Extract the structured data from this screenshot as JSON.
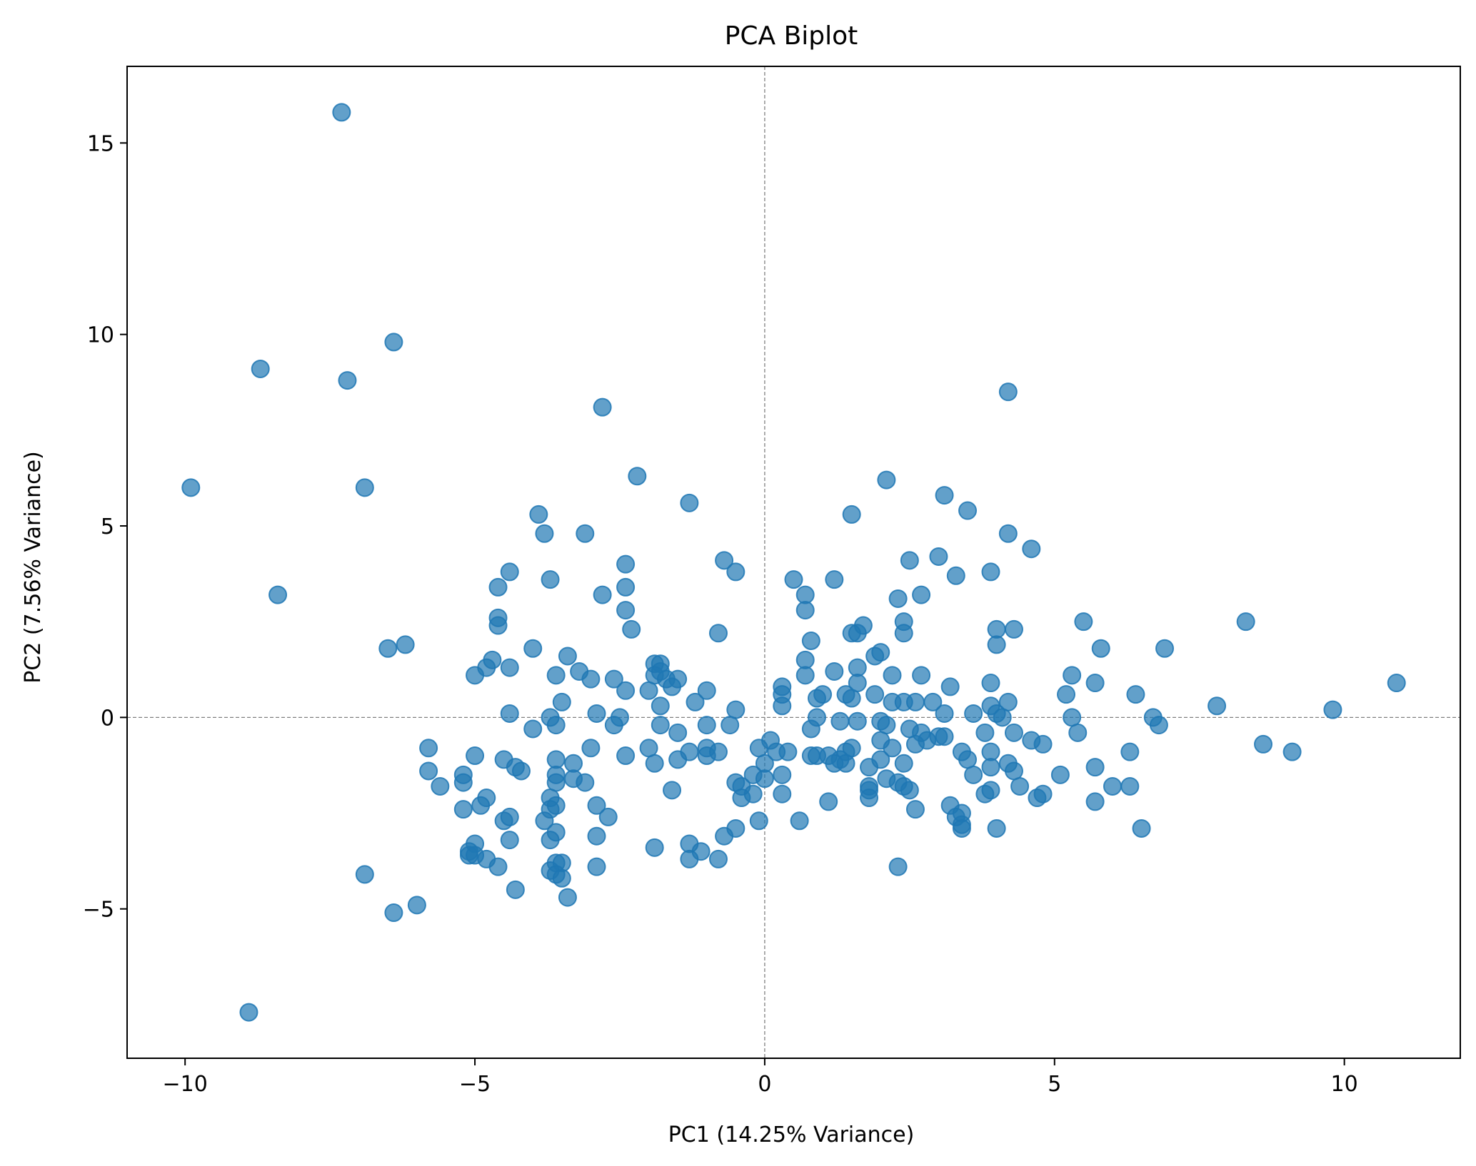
{
  "chart_data": {
    "type": "scatter",
    "title": "PCA Biplot",
    "xlabel": "PC1 (14.25% Variance)",
    "ylabel": "PC2 (7.56% Variance)",
    "xlim": [
      -11,
      12
    ],
    "ylim": [
      -8.9,
      17
    ],
    "xticks": [
      -10,
      -5,
      0,
      5,
      10
    ],
    "yticks": [
      -5,
      0,
      5,
      10,
      15
    ],
    "xtick_labels": [
      "−10",
      "−5",
      "0",
      "5",
      "10"
    ],
    "ytick_labels": [
      "−5",
      "0",
      "5",
      "10",
      "15"
    ],
    "grid": false,
    "reference_lines": [
      "x=0 dashed",
      "y=0 dashed"
    ],
    "marker_color": "#1f77b4",
    "marker_alpha": 0.7,
    "points": [
      [
        -7.3,
        15.8
      ],
      [
        -6.4,
        9.8
      ],
      [
        -8.7,
        9.1
      ],
      [
        -7.2,
        8.8
      ],
      [
        -9.9,
        6.0
      ],
      [
        -6.9,
        6.0
      ],
      [
        -8.4,
        3.2
      ],
      [
        -6.5,
        1.8
      ],
      [
        -6.2,
        1.9
      ],
      [
        -2.8,
        8.1
      ],
      [
        -2.2,
        6.3
      ],
      [
        -1.3,
        5.6
      ],
      [
        -3.9,
        5.3
      ],
      [
        -3.8,
        4.8
      ],
      [
        -3.1,
        4.8
      ],
      [
        -2.4,
        4.0
      ],
      [
        -0.7,
        4.1
      ],
      [
        -0.5,
        3.8
      ],
      [
        -4.4,
        3.8
      ],
      [
        -3.7,
        3.6
      ],
      [
        -4.6,
        3.4
      ],
      [
        -2.8,
        3.2
      ],
      [
        -2.4,
        3.4
      ],
      [
        -2.4,
        2.8
      ],
      [
        -2.3,
        2.3
      ],
      [
        -0.8,
        2.2
      ],
      [
        -4.6,
        2.6
      ],
      [
        -4.6,
        2.4
      ],
      [
        -4.0,
        1.8
      ],
      [
        -3.4,
        1.6
      ],
      [
        -4.7,
        1.5
      ],
      [
        -4.4,
        1.3
      ],
      [
        -4.8,
        1.3
      ],
      [
        -5.0,
        1.1
      ],
      [
        -3.6,
        1.1
      ],
      [
        -3.2,
        1.2
      ],
      [
        -3.0,
        1.0
      ],
      [
        -2.6,
        1.0
      ],
      [
        -1.9,
        1.4
      ],
      [
        -1.8,
        1.4
      ],
      [
        -1.9,
        1.1
      ],
      [
        -1.8,
        1.2
      ],
      [
        -1.7,
        1.0
      ],
      [
        -1.5,
        1.0
      ],
      [
        -1.6,
        0.8
      ],
      [
        -2.0,
        0.7
      ],
      [
        -2.4,
        0.7
      ],
      [
        -1.0,
        0.7
      ],
      [
        -1.2,
        0.4
      ],
      [
        -3.5,
        0.4
      ],
      [
        -4.4,
        0.1
      ],
      [
        -3.7,
        0.0
      ],
      [
        -2.9,
        0.1
      ],
      [
        -2.5,
        0.0
      ],
      [
        -1.8,
        0.3
      ],
      [
        -0.5,
        0.2
      ],
      [
        -2.6,
        -0.2
      ],
      [
        -1.8,
        -0.2
      ],
      [
        -1.0,
        -0.2
      ],
      [
        -0.6,
        -0.2
      ],
      [
        -4.0,
        -0.3
      ],
      [
        -3.6,
        -0.2
      ],
      [
        -1.5,
        -0.4
      ],
      [
        -5.8,
        -0.8
      ],
      [
        -5.0,
        -1.0
      ],
      [
        -4.5,
        -1.1
      ],
      [
        -4.3,
        -1.3
      ],
      [
        -4.2,
        -1.4
      ],
      [
        -3.6,
        -1.1
      ],
      [
        -3.3,
        -1.2
      ],
      [
        -3.0,
        -0.8
      ],
      [
        -2.4,
        -1.0
      ],
      [
        -2.0,
        -0.8
      ],
      [
        -1.9,
        -1.2
      ],
      [
        -1.5,
        -1.1
      ],
      [
        -1.3,
        -0.9
      ],
      [
        -1.0,
        -0.8
      ],
      [
        -1.0,
        -1.0
      ],
      [
        -0.8,
        -0.9
      ],
      [
        -5.8,
        -1.4
      ],
      [
        -5.2,
        -1.5
      ],
      [
        -5.2,
        -1.7
      ],
      [
        -5.6,
        -1.8
      ],
      [
        -3.6,
        -1.5
      ],
      [
        -3.6,
        -1.7
      ],
      [
        -3.3,
        -1.6
      ],
      [
        -3.1,
        -1.7
      ],
      [
        -1.6,
        -1.9
      ],
      [
        -0.5,
        -1.7
      ],
      [
        -0.4,
        -1.8
      ],
      [
        -0.2,
        -1.5
      ],
      [
        0.0,
        -1.6
      ],
      [
        0.3,
        -1.5
      ],
      [
        0.0,
        -1.2
      ],
      [
        -3.7,
        -2.1
      ],
      [
        -3.6,
        -2.3
      ],
      [
        -3.7,
        -2.4
      ],
      [
        -2.9,
        -2.3
      ],
      [
        -2.7,
        -2.6
      ],
      [
        -0.4,
        -2.1
      ],
      [
        -0.2,
        -2.0
      ],
      [
        0.3,
        -2.0
      ],
      [
        -5.2,
        -2.4
      ],
      [
        -4.8,
        -2.1
      ],
      [
        -4.9,
        -2.3
      ],
      [
        -4.5,
        -2.7
      ],
      [
        -4.4,
        -2.6
      ],
      [
        -3.8,
        -2.7
      ],
      [
        -3.6,
        -3.0
      ],
      [
        -3.7,
        -3.2
      ],
      [
        -2.9,
        -3.1
      ],
      [
        -0.5,
        -2.9
      ],
      [
        -0.7,
        -3.1
      ],
      [
        -0.1,
        -2.7
      ],
      [
        -4.4,
        -3.2
      ],
      [
        -5.0,
        -3.3
      ],
      [
        -5.1,
        -3.5
      ],
      [
        -5.1,
        -3.6
      ],
      [
        -5.0,
        -3.6
      ],
      [
        -4.8,
        -3.7
      ],
      [
        -4.6,
        -3.9
      ],
      [
        -1.9,
        -3.4
      ],
      [
        -1.3,
        -3.3
      ],
      [
        -1.1,
        -3.5
      ],
      [
        -1.3,
        -3.7
      ],
      [
        -0.8,
        -3.7
      ],
      [
        -3.6,
        -3.8
      ],
      [
        -3.5,
        -3.8
      ],
      [
        -3.7,
        -4.0
      ],
      [
        -3.6,
        -4.1
      ],
      [
        -3.5,
        -4.2
      ],
      [
        -2.9,
        -3.9
      ],
      [
        -4.3,
        -4.5
      ],
      [
        -3.4,
        -4.7
      ],
      [
        -6.9,
        -4.1
      ],
      [
        -6.4,
        -5.1
      ],
      [
        -6.0,
        -4.9
      ],
      [
        -8.9,
        -7.7
      ],
      [
        0.1,
        -0.6
      ],
      [
        -0.1,
        -0.8
      ],
      [
        0.6,
        -2.7
      ],
      [
        0.2,
        -0.9
      ],
      [
        0.4,
        -0.9
      ],
      [
        4.2,
        8.5
      ],
      [
        2.1,
        6.2
      ],
      [
        3.1,
        5.8
      ],
      [
        3.5,
        5.4
      ],
      [
        1.5,
        5.3
      ],
      [
        4.2,
        4.8
      ],
      [
        4.6,
        4.4
      ],
      [
        3.0,
        4.2
      ],
      [
        2.5,
        4.1
      ],
      [
        3.9,
        3.8
      ],
      [
        3.3,
        3.7
      ],
      [
        0.5,
        3.6
      ],
      [
        1.2,
        3.6
      ],
      [
        0.7,
        3.2
      ],
      [
        2.3,
        3.1
      ],
      [
        2.7,
        3.2
      ],
      [
        0.7,
        2.8
      ],
      [
        2.4,
        2.5
      ],
      [
        4.0,
        2.3
      ],
      [
        4.3,
        2.3
      ],
      [
        1.7,
        2.4
      ],
      [
        1.5,
        2.2
      ],
      [
        1.6,
        2.2
      ],
      [
        2.4,
        2.2
      ],
      [
        0.8,
        2.0
      ],
      [
        4.0,
        1.9
      ],
      [
        1.9,
        1.6
      ],
      [
        2.0,
        1.7
      ],
      [
        0.7,
        1.5
      ],
      [
        1.2,
        1.2
      ],
      [
        1.6,
        1.3
      ],
      [
        2.2,
        1.1
      ],
      [
        2.7,
        1.1
      ],
      [
        0.7,
        1.1
      ],
      [
        3.9,
        0.9
      ],
      [
        3.2,
        0.8
      ],
      [
        0.3,
        0.8
      ],
      [
        0.3,
        0.6
      ],
      [
        1.0,
        0.6
      ],
      [
        1.4,
        0.6
      ],
      [
        1.6,
        0.9
      ],
      [
        1.5,
        0.5
      ],
      [
        0.9,
        0.5
      ],
      [
        1.9,
        0.6
      ],
      [
        2.2,
        0.4
      ],
      [
        2.4,
        0.4
      ],
      [
        2.6,
        0.4
      ],
      [
        2.9,
        0.4
      ],
      [
        4.2,
        0.4
      ],
      [
        3.9,
        0.3
      ],
      [
        0.3,
        0.3
      ],
      [
        3.6,
        0.1
      ],
      [
        3.1,
        0.1
      ],
      [
        4.0,
        0.1
      ],
      [
        4.1,
        0.0
      ],
      [
        0.9,
        0.0
      ],
      [
        1.3,
        -0.1
      ],
      [
        1.6,
        -0.1
      ],
      [
        2.0,
        -0.1
      ],
      [
        2.1,
        -0.2
      ],
      [
        0.8,
        -0.3
      ],
      [
        2.5,
        -0.3
      ],
      [
        2.7,
        -0.4
      ],
      [
        3.8,
        -0.4
      ],
      [
        4.3,
        -0.4
      ],
      [
        3.0,
        -0.5
      ],
      [
        3.1,
        -0.5
      ],
      [
        2.0,
        -0.6
      ],
      [
        2.6,
        -0.7
      ],
      [
        2.8,
        -0.6
      ],
      [
        4.6,
        -0.6
      ],
      [
        4.8,
        -0.7
      ],
      [
        2.2,
        -0.8
      ],
      [
        1.5,
        -0.8
      ],
      [
        1.4,
        -0.9
      ],
      [
        3.4,
        -0.9
      ],
      [
        3.9,
        -0.9
      ],
      [
        0.9,
        -1.0
      ],
      [
        1.1,
        -1.0
      ],
      [
        0.8,
        -1.0
      ],
      [
        1.3,
        -1.1
      ],
      [
        1.2,
        -1.2
      ],
      [
        2.0,
        -1.1
      ],
      [
        3.5,
        -1.1
      ],
      [
        4.2,
        -1.2
      ],
      [
        4.3,
        -1.4
      ],
      [
        3.9,
        -1.3
      ],
      [
        2.4,
        -1.2
      ],
      [
        1.8,
        -1.3
      ],
      [
        1.4,
        -1.2
      ],
      [
        2.1,
        -1.6
      ],
      [
        2.3,
        -1.7
      ],
      [
        1.8,
        -1.8
      ],
      [
        2.4,
        -1.8
      ],
      [
        2.5,
        -1.9
      ],
      [
        1.8,
        -1.9
      ],
      [
        1.8,
        -2.1
      ],
      [
        3.6,
        -1.5
      ],
      [
        4.4,
        -1.8
      ],
      [
        3.8,
        -2.0
      ],
      [
        3.9,
        -1.9
      ],
      [
        4.7,
        -2.1
      ],
      [
        4.8,
        -2.0
      ],
      [
        1.1,
        -2.2
      ],
      [
        2.6,
        -2.4
      ],
      [
        3.2,
        -2.3
      ],
      [
        3.3,
        -2.6
      ],
      [
        3.4,
        -2.8
      ],
      [
        3.4,
        -2.5
      ],
      [
        3.4,
        -2.9
      ],
      [
        4.0,
        -2.9
      ],
      [
        2.3,
        -3.9
      ],
      [
        5.5,
        2.5
      ],
      [
        5.8,
        1.8
      ],
      [
        6.9,
        1.8
      ],
      [
        5.3,
        1.1
      ],
      [
        5.7,
        0.9
      ],
      [
        5.2,
        0.6
      ],
      [
        6.4,
        0.6
      ],
      [
        5.3,
        0.0
      ],
      [
        5.4,
        -0.4
      ],
      [
        6.7,
        0.0
      ],
      [
        6.8,
        -0.2
      ],
      [
        5.7,
        -1.3
      ],
      [
        6.3,
        -0.9
      ],
      [
        5.1,
        -1.5
      ],
      [
        6.0,
        -1.8
      ],
      [
        6.3,
        -1.8
      ],
      [
        5.7,
        -2.2
      ],
      [
        6.5,
        -2.9
      ],
      [
        7.8,
        0.3
      ],
      [
        8.3,
        2.5
      ],
      [
        8.6,
        -0.7
      ],
      [
        9.1,
        -0.9
      ],
      [
        9.8,
        0.2
      ],
      [
        10.9,
        0.9
      ]
    ]
  }
}
